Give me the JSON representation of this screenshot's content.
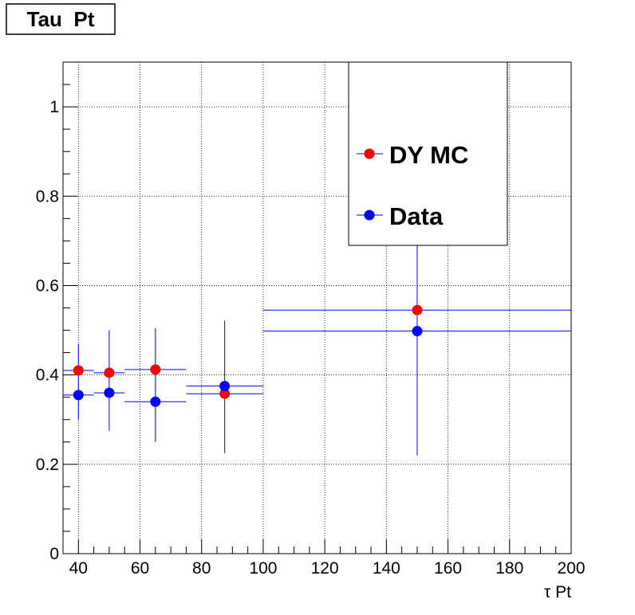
{
  "chart_data": {
    "type": "scatter",
    "title": "Tau  Pt",
    "xlabel": "τ Pt",
    "ylabel": "",
    "xlim": [
      35,
      200
    ],
    "ylim": [
      0,
      1.1
    ],
    "x_ticks": [
      40,
      60,
      80,
      100,
      120,
      140,
      160,
      180,
      200
    ],
    "y_ticks": [
      0,
      0.2,
      0.4,
      0.6,
      0.8,
      1
    ],
    "y_tick_labels": [
      "0",
      "0.2",
      "0.4",
      "0.6",
      "0.8",
      "1"
    ],
    "grid": true,
    "legend_position": "top-right",
    "series": [
      {
        "name": "DY MC",
        "color": "#ff0000",
        "points": [
          {
            "x": 40,
            "xlo": 35,
            "xhi": 45,
            "y": 0.41,
            "ylo": 0.41,
            "yhi": 0.41
          },
          {
            "x": 50,
            "xlo": 45,
            "xhi": 55,
            "y": 0.405,
            "ylo": 0.405,
            "yhi": 0.405
          },
          {
            "x": 65,
            "xlo": 55,
            "xhi": 75,
            "y": 0.412,
            "ylo": 0.412,
            "yhi": 0.412
          },
          {
            "x": 87.5,
            "xlo": 75,
            "xhi": 100,
            "y": 0.358,
            "ylo": 0.358,
            "yhi": 0.358
          },
          {
            "x": 150,
            "xlo": 100,
            "xhi": 200,
            "y": 0.545,
            "ylo": 0.545,
            "yhi": 0.545
          }
        ]
      },
      {
        "name": "Data",
        "color": "#0000ff",
        "points": [
          {
            "x": 40,
            "xlo": 35,
            "xhi": 45,
            "y": 0.355,
            "ylo": 0.3,
            "yhi": 0.47
          },
          {
            "x": 50,
            "xlo": 45,
            "xhi": 55,
            "y": 0.36,
            "ylo": 0.275,
            "yhi": 0.5
          },
          {
            "x": 65,
            "xlo": 55,
            "xhi": 75,
            "y": 0.34,
            "ylo": 0.25,
            "yhi": 0.505
          },
          {
            "x": 87.5,
            "xlo": 75,
            "xhi": 100,
            "y": 0.375,
            "ylo": 0.225,
            "yhi": 0.522
          },
          {
            "x": 150,
            "xlo": 100,
            "xhi": 200,
            "y": 0.498,
            "ylo": 0.22,
            "yhi": 0.8
          }
        ]
      }
    ]
  }
}
